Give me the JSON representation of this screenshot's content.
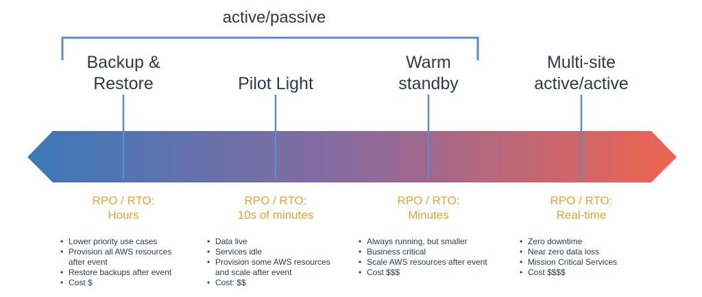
{
  "group_label": "active/passive",
  "colors": {
    "arrow_start": "#3b78b8",
    "arrow_mid": "#8a6a9e",
    "arrow_end": "#ef6450",
    "rpo_text": "#f0a030",
    "text": "#2b3a4f",
    "lines": "#5b8bcc"
  },
  "strategies": [
    {
      "title_lines": [
        "Backup &",
        "Restore"
      ],
      "rpo_label": "RPO / RTO:",
      "rpo_value": "Hours",
      "bullets": [
        [
          "Lower priority use cases"
        ],
        [
          "Provision all AWS resources",
          "after event"
        ],
        [
          "Restore backups after event"
        ],
        [
          "Cost $"
        ]
      ]
    },
    {
      "title_lines": [
        "Pilot Light"
      ],
      "rpo_label": "RPO / RTO:",
      "rpo_value": "10s of minutes",
      "bullets": [
        [
          "Data live"
        ],
        [
          "Services idle"
        ],
        [
          "Provision some AWS resources",
          "and scale after event"
        ],
        [
          "Cost: $$"
        ]
      ]
    },
    {
      "title_lines": [
        "Warm",
        "standby"
      ],
      "rpo_label": "RPO / RTO:",
      "rpo_value": "Minutes",
      "bullets": [
        [
          "Always running, but smaller"
        ],
        [
          "Business critical"
        ],
        [
          "Scale AWS resources after event"
        ],
        [
          "Cost $$$"
        ]
      ]
    },
    {
      "title_lines": [
        "Multi-site",
        "active/active"
      ],
      "rpo_label": "RPO / RTO:",
      "rpo_value": "Real-time",
      "bullets": [
        [
          "Zero downtime"
        ],
        [
          "Near zero data loss"
        ],
        [
          "Mission Critical Services"
        ],
        [
          "Cost $$$$"
        ]
      ]
    }
  ]
}
